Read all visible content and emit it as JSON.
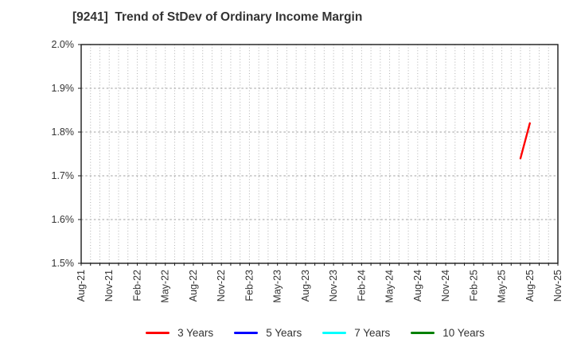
{
  "title": "[9241]  Trend of StDev of Ordinary Income Margin",
  "chart_data": {
    "type": "line",
    "title": "[9241]  Trend of StDev of Ordinary Income Margin",
    "xlabel": "",
    "ylabel": "",
    "ylim": [
      1.5,
      2.0
    ],
    "y_unit": "%",
    "y_tick_values": [
      2.0,
      1.9,
      1.8,
      1.7,
      1.6,
      1.5
    ],
    "y_tick_labels": [
      "2.0%",
      "1.9%",
      "1.8%",
      "1.7%",
      "1.6%",
      "1.5%"
    ],
    "x_months": [
      "Aug-21",
      "Sep-21",
      "Oct-21",
      "Nov-21",
      "Dec-21",
      "Jan-22",
      "Feb-22",
      "Mar-22",
      "Apr-22",
      "May-22",
      "Jun-22",
      "Jul-22",
      "Aug-22",
      "Sep-22",
      "Oct-22",
      "Nov-22",
      "Dec-22",
      "Jan-23",
      "Feb-23",
      "Mar-23",
      "Apr-23",
      "May-23",
      "Jun-23",
      "Jul-23",
      "Aug-23",
      "Sep-23",
      "Oct-23",
      "Nov-23",
      "Dec-23",
      "Jan-24",
      "Feb-24",
      "Mar-24",
      "Apr-24",
      "May-24",
      "Jun-24",
      "Jul-24",
      "Aug-24",
      "Sep-24",
      "Oct-24",
      "Nov-24",
      "Dec-24",
      "Jan-25",
      "Feb-25",
      "Mar-25",
      "Apr-25",
      "May-25",
      "Jun-25",
      "Jul-25",
      "Aug-25",
      "Sep-25",
      "Oct-25",
      "Nov-25"
    ],
    "x_tick_labels": [
      "Aug-21",
      "Nov-21",
      "Feb-22",
      "May-22",
      "Aug-22",
      "Nov-22",
      "Feb-23",
      "May-23",
      "Aug-23",
      "Nov-23",
      "Feb-24",
      "May-24",
      "Aug-24",
      "Nov-24",
      "Feb-25",
      "May-25",
      "Aug-25",
      "Nov-25"
    ],
    "grid": "on",
    "legend_position": "bottom",
    "series": [
      {
        "name": "3 Years",
        "color": "#ff0000",
        "points": [
          {
            "x": "Jul-25",
            "y": 1.74
          },
          {
            "x": "Aug-25",
            "y": 1.82
          }
        ]
      },
      {
        "name": "5 Years",
        "color": "#0000ff",
        "points": []
      },
      {
        "name": "7 Years",
        "color": "#00ffff",
        "points": []
      },
      {
        "name": "10 Years",
        "color": "#008000",
        "points": []
      }
    ],
    "colors": {
      "text": "#333333",
      "axis_border": "#1a1a1a",
      "grid_vertical": "#b0b0b0",
      "grid_horizontal": "#a0a0a0"
    }
  }
}
